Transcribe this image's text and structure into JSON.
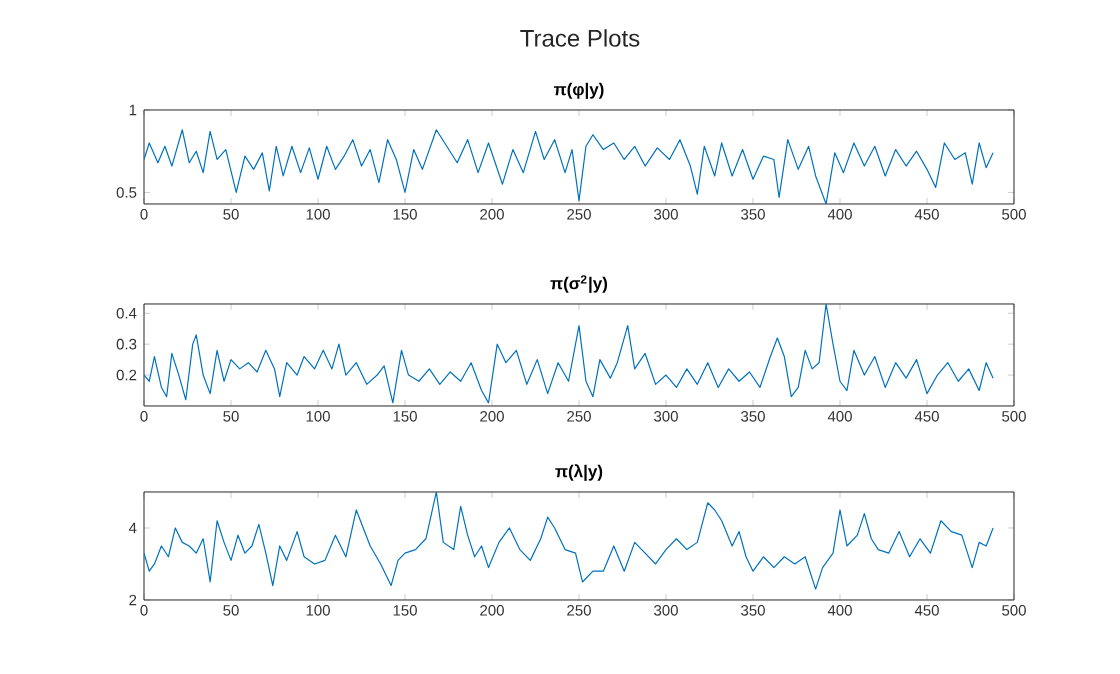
{
  "chart_data": [
    {
      "type": "line",
      "title": "Trace Plots",
      "subtitle": "**π(φ|y)**",
      "color": "#0072bd",
      "xlim": [
        0,
        500
      ],
      "ylim": [
        0.43,
        1
      ],
      "xticks": [
        0,
        50,
        100,
        150,
        200,
        250,
        300,
        350,
        400,
        450,
        500
      ],
      "yticks": [
        0.5,
        1
      ],
      "x": [
        0,
        3,
        8,
        12,
        16,
        22,
        26,
        30,
        34,
        38,
        42,
        47,
        53,
        58,
        63,
        68,
        72,
        76,
        80,
        85,
        90,
        95,
        100,
        105,
        110,
        115,
        120,
        125,
        130,
        135,
        140,
        145,
        150,
        155,
        160,
        168,
        174,
        180,
        186,
        192,
        198,
        206,
        212,
        218,
        225,
        230,
        236,
        242,
        246,
        250,
        254,
        258,
        264,
        270,
        276,
        282,
        288,
        295,
        302,
        308,
        314,
        318,
        322,
        328,
        332,
        338,
        344,
        350,
        356,
        362,
        365,
        370,
        376,
        382,
        386,
        392,
        397,
        402,
        408,
        414,
        420,
        426,
        432,
        438,
        444,
        450,
        455,
        460,
        466,
        472,
        476,
        480,
        484,
        488
      ],
      "values": [
        0.7,
        0.8,
        0.68,
        0.78,
        0.66,
        0.88,
        0.68,
        0.75,
        0.62,
        0.87,
        0.7,
        0.76,
        0.5,
        0.72,
        0.64,
        0.74,
        0.51,
        0.78,
        0.6,
        0.78,
        0.62,
        0.77,
        0.58,
        0.78,
        0.64,
        0.72,
        0.82,
        0.66,
        0.76,
        0.56,
        0.82,
        0.7,
        0.5,
        0.76,
        0.64,
        0.88,
        0.78,
        0.68,
        0.82,
        0.62,
        0.8,
        0.55,
        0.76,
        0.62,
        0.87,
        0.7,
        0.82,
        0.62,
        0.76,
        0.45,
        0.78,
        0.85,
        0.76,
        0.8,
        0.7,
        0.78,
        0.66,
        0.77,
        0.7,
        0.82,
        0.66,
        0.49,
        0.78,
        0.6,
        0.8,
        0.6,
        0.76,
        0.58,
        0.72,
        0.7,
        0.47,
        0.82,
        0.64,
        0.78,
        0.6,
        0.43,
        0.74,
        0.62,
        0.8,
        0.66,
        0.78,
        0.6,
        0.76,
        0.66,
        0.75,
        0.64,
        0.53,
        0.8,
        0.7,
        0.74,
        0.55,
        0.8,
        0.65,
        0.74
      ]
    },
    {
      "type": "line",
      "title": "**π(σ$^{2}$|y)**",
      "color": "#0072bd",
      "xlim": [
        0,
        500
      ],
      "ylim": [
        0.1,
        0.43
      ],
      "xticks": [
        0,
        50,
        100,
        150,
        200,
        250,
        300,
        350,
        400,
        450,
        500
      ],
      "yticks": [
        0.2,
        0.3,
        0.4
      ],
      "x": [
        0,
        3,
        6,
        10,
        13,
        16,
        20,
        24,
        28,
        30,
        34,
        38,
        42,
        46,
        50,
        55,
        60,
        65,
        70,
        75,
        78,
        82,
        88,
        92,
        98,
        103,
        108,
        112,
        116,
        122,
        128,
        134,
        138,
        143,
        148,
        152,
        158,
        164,
        170,
        176,
        182,
        188,
        194,
        198,
        203,
        208,
        214,
        220,
        226,
        232,
        238,
        244,
        250,
        254,
        258,
        262,
        268,
        272,
        278,
        282,
        288,
        294,
        300,
        306,
        312,
        318,
        324,
        330,
        336,
        342,
        348,
        354,
        360,
        364,
        368,
        372,
        376,
        380,
        384,
        388,
        392,
        396,
        400,
        404,
        408,
        414,
        420,
        426,
        432,
        438,
        444,
        450,
        456,
        462,
        468,
        474,
        480,
        484,
        488
      ],
      "values": [
        0.2,
        0.18,
        0.26,
        0.16,
        0.13,
        0.27,
        0.2,
        0.12,
        0.3,
        0.33,
        0.2,
        0.14,
        0.28,
        0.18,
        0.25,
        0.22,
        0.24,
        0.21,
        0.28,
        0.22,
        0.13,
        0.24,
        0.2,
        0.26,
        0.22,
        0.28,
        0.22,
        0.3,
        0.2,
        0.24,
        0.17,
        0.2,
        0.23,
        0.11,
        0.28,
        0.2,
        0.18,
        0.22,
        0.17,
        0.21,
        0.18,
        0.24,
        0.15,
        0.11,
        0.3,
        0.24,
        0.28,
        0.17,
        0.25,
        0.14,
        0.24,
        0.18,
        0.36,
        0.18,
        0.13,
        0.25,
        0.19,
        0.24,
        0.36,
        0.22,
        0.27,
        0.17,
        0.2,
        0.16,
        0.22,
        0.17,
        0.24,
        0.16,
        0.22,
        0.18,
        0.21,
        0.16,
        0.26,
        0.32,
        0.26,
        0.13,
        0.16,
        0.28,
        0.22,
        0.24,
        0.43,
        0.3,
        0.18,
        0.15,
        0.28,
        0.2,
        0.26,
        0.16,
        0.24,
        0.19,
        0.25,
        0.14,
        0.2,
        0.24,
        0.18,
        0.22,
        0.15,
        0.24,
        0.19
      ]
    },
    {
      "type": "line",
      "title": "**π(λ|y)**",
      "color": "#0072bd",
      "xlim": [
        0,
        500
      ],
      "ylim": [
        2,
        5
      ],
      "xticks": [
        0,
        50,
        100,
        150,
        200,
        250,
        300,
        350,
        400,
        450,
        500
      ],
      "yticks": [
        2,
        4
      ],
      "x": [
        0,
        3,
        6,
        10,
        14,
        18,
        22,
        26,
        30,
        34,
        38,
        42,
        46,
        50,
        54,
        58,
        62,
        66,
        70,
        74,
        78,
        82,
        88,
        92,
        98,
        104,
        110,
        116,
        122,
        126,
        130,
        136,
        142,
        146,
        150,
        156,
        162,
        168,
        172,
        178,
        182,
        186,
        190,
        194,
        198,
        204,
        210,
        216,
        222,
        228,
        232,
        236,
        242,
        248,
        252,
        258,
        264,
        270,
        276,
        282,
        288,
        294,
        300,
        306,
        312,
        318,
        324,
        328,
        332,
        338,
        342,
        346,
        350,
        356,
        362,
        368,
        374,
        380,
        386,
        390,
        396,
        400,
        404,
        410,
        414,
        418,
        422,
        428,
        434,
        440,
        446,
        452,
        458,
        464,
        470,
        476,
        480,
        484,
        488
      ],
      "values": [
        3.3,
        2.8,
        3.0,
        3.5,
        3.2,
        4.0,
        3.6,
        3.5,
        3.3,
        3.7,
        2.5,
        4.2,
        3.6,
        3.1,
        3.8,
        3.3,
        3.5,
        4.1,
        3.3,
        2.4,
        3.5,
        3.1,
        3.9,
        3.2,
        3.0,
        3.1,
        3.8,
        3.2,
        4.5,
        4.0,
        3.5,
        3.0,
        2.4,
        3.1,
        3.3,
        3.4,
        3.7,
        5.0,
        3.6,
        3.4,
        4.6,
        3.8,
        3.2,
        3.5,
        2.9,
        3.6,
        4.0,
        3.4,
        3.1,
        3.7,
        4.3,
        4.0,
        3.4,
        3.3,
        2.5,
        2.8,
        2.8,
        3.5,
        2.8,
        3.6,
        3.3,
        3.0,
        3.4,
        3.7,
        3.4,
        3.6,
        4.7,
        4.5,
        4.2,
        3.5,
        3.9,
        3.2,
        2.8,
        3.2,
        2.9,
        3.2,
        3.0,
        3.2,
        2.3,
        2.9,
        3.3,
        4.5,
        3.5,
        3.8,
        4.4,
        3.7,
        3.4,
        3.3,
        3.9,
        3.2,
        3.7,
        3.3,
        4.2,
        3.9,
        3.8,
        2.9,
        3.6,
        3.5,
        4.0
      ]
    }
  ]
}
